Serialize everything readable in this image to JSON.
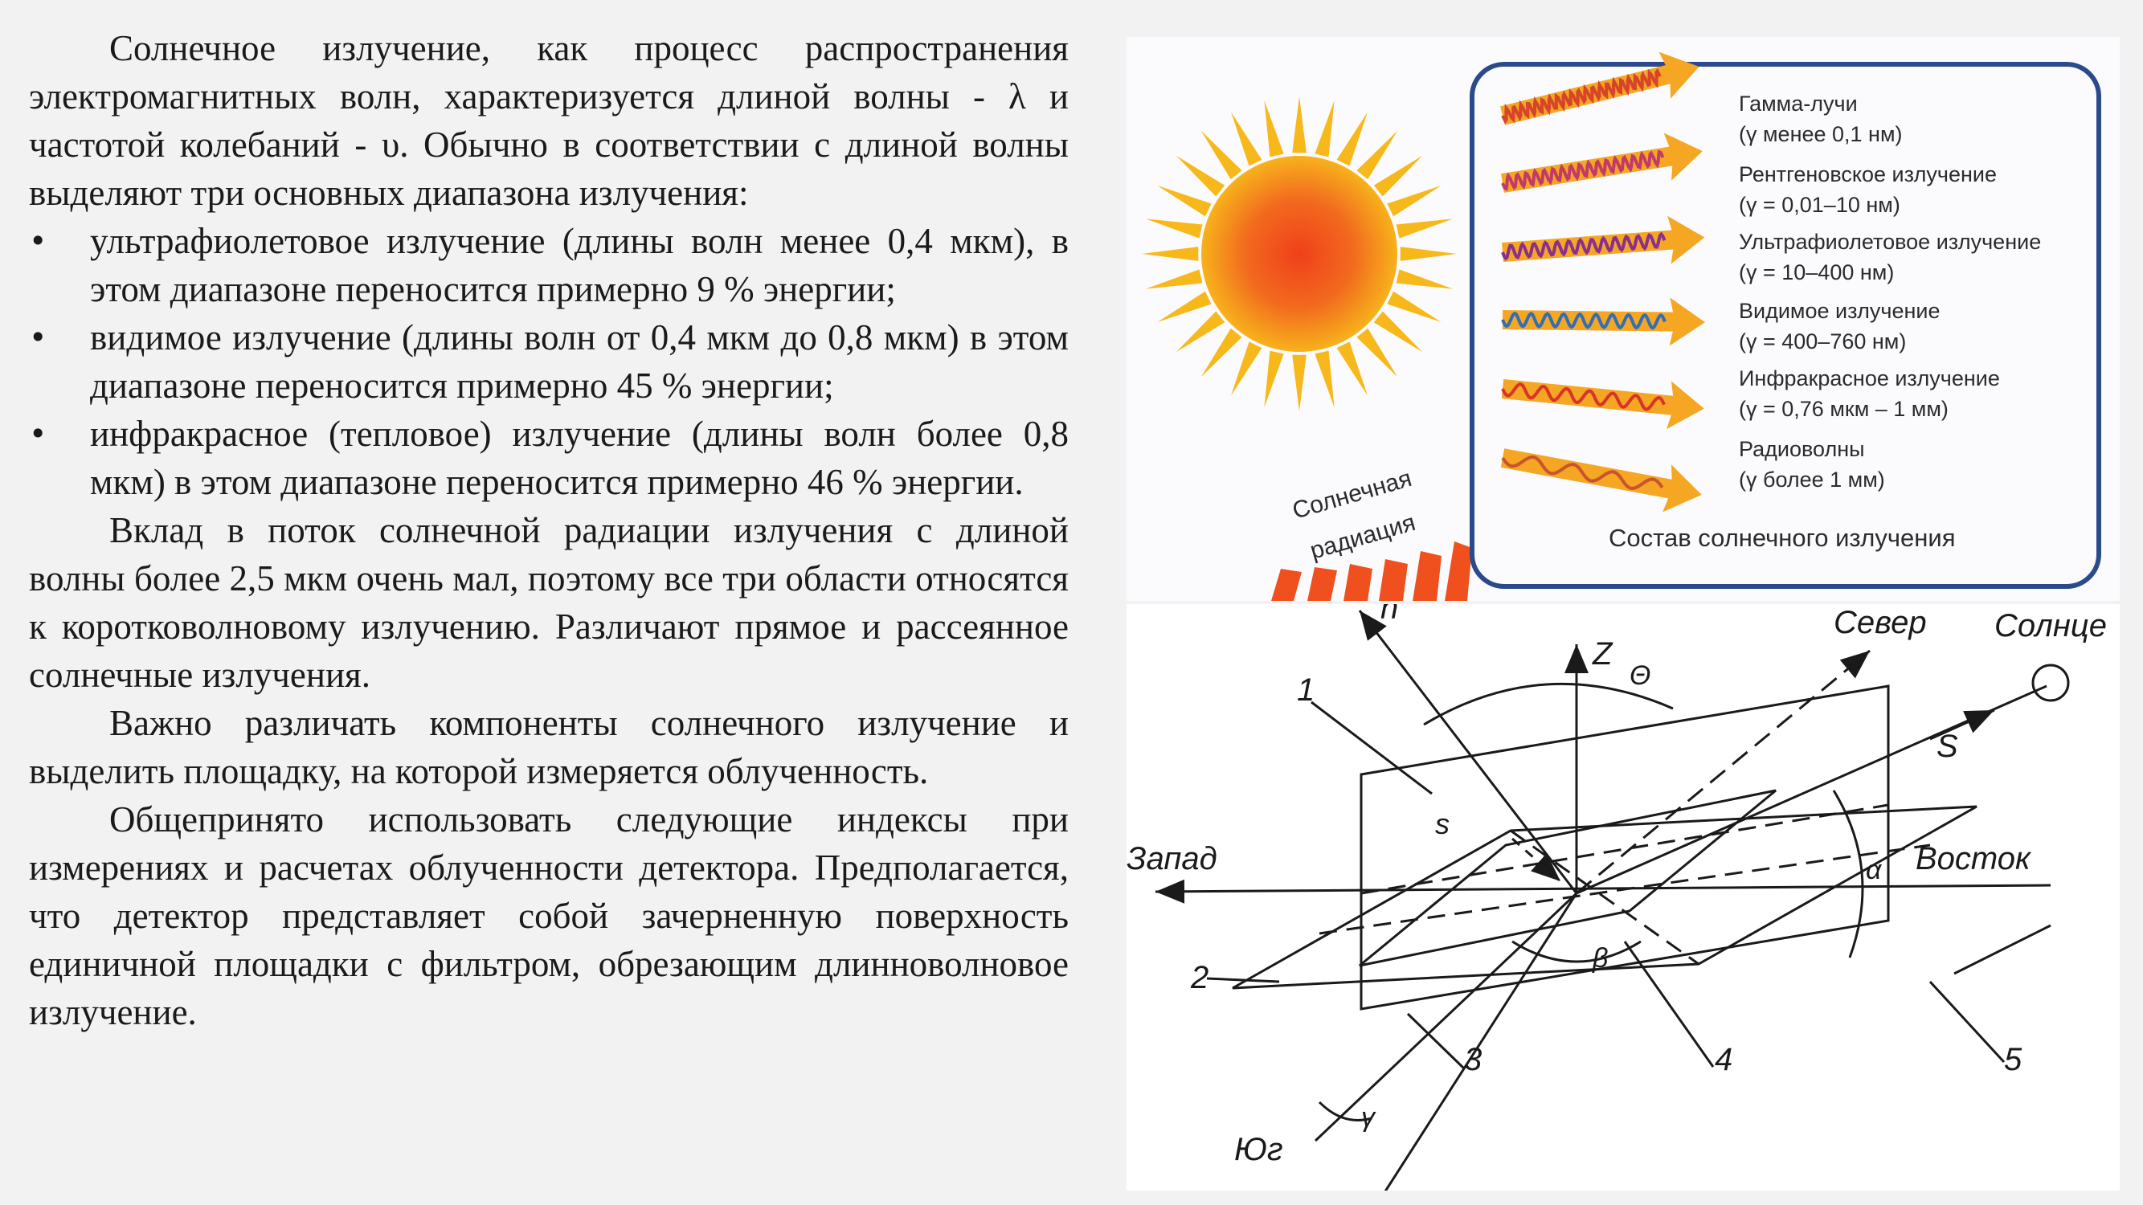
{
  "text": {
    "p1": "Солнечное излучение, как процесс распространения электромагнитных волн, характеризуется длиной волны - λ и частотой колебаний - υ. Обычно в соответствии с длиной волны выделяют три основных диапазона излучения:",
    "bullets": [
      "ультрафиолетовое излучение (длины волн менее 0,4 мкм), в этом диапазоне переносится примерно 9 % энергии;",
      "видимое излучение (длины волн от 0,4 мкм до 0,8 мкм) в этом диапазоне переносится примерно 45 % энергии;",
      "инфракрасное (тепловое) излучение (длины волн более 0,8 мкм) в этом диапазоне переносится примерно 46 % энергии."
    ],
    "p2": "Вклад в поток солнечной радиации излучения с длиной волны более 2,5 мкм очень мал, поэтому все три области относятся к коротковолновому излучению. Различают прямое и рассеянное солнечные излучения.",
    "p3": "Важно различать компоненты солнечного излучение и выделить площадку, на которой измеряется облученность.",
    "p4": "Общепринято использовать следующие индексы при измерениях и расчетах облученности детектора. Предполагается, что детектор представляет собой зачерненную поверхность единичной площадки с фильтром, обрезающим длинноволновое излучение."
  },
  "spectrum_figure": {
    "sun_label_1": "Солнечная",
    "sun_label_2": "радиация",
    "caption": "Состав солнечного излучения",
    "bands": [
      {
        "name": "Гамма-лучи",
        "range": "(γ менее 0,1 нм)",
        "color": "#d8442a"
      },
      {
        "name": "Рентгеновское излучение",
        "range": "(γ = 0,01–10 нм)",
        "color": "#c23a6a"
      },
      {
        "name": "Ультрафиолетовое излучение",
        "range": "(γ = 10–400 нм)",
        "color": "#8a2f8f"
      },
      {
        "name": "Видимое излучение",
        "range": "(γ = 400–760 нм)",
        "color": "#2f6fb7"
      },
      {
        "name": "Инфракрасное излучение",
        "range": "(γ = 0,76 мкм – 1 мм)",
        "color": "#d8342a"
      },
      {
        "name": "Радиоволны",
        "range": "(γ более 1 мм)",
        "color": "#c9532e"
      }
    ],
    "colors": {
      "sun_core": "#f04a1c",
      "sun_rays": "#f7b81c",
      "arrow": "#f5a623",
      "frame": "#2b4a8a"
    }
  },
  "geometry_figure": {
    "labels": {
      "n": "n",
      "z": "Z",
      "theta": "Θ",
      "north": "Север",
      "sun": "Солнце",
      "s_upper": "S",
      "s_lower": "s",
      "west": "Запад",
      "east": "Восток",
      "alpha": "α",
      "beta": "β",
      "gamma": "γ",
      "south": "Юг",
      "num1": "1",
      "num2": "2",
      "num3": "3",
      "num4": "4",
      "num5": "5"
    }
  }
}
